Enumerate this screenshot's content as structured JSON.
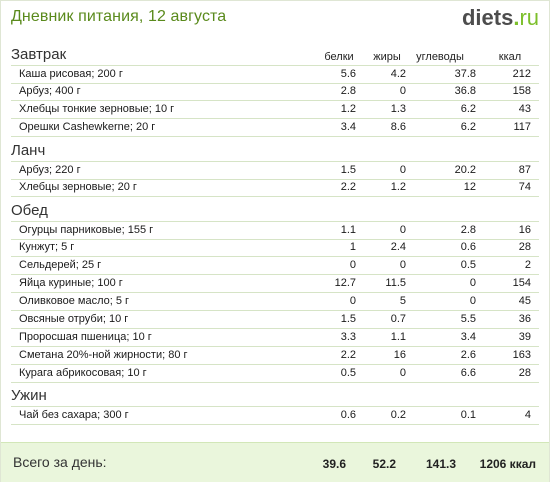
{
  "title": "Дневник питания, 12 августа",
  "logo": {
    "name": "diets",
    "dot": ".",
    "tld": "ru"
  },
  "columns": [
    "белки",
    "жиры",
    "углеводы",
    "ккал"
  ],
  "sections": [
    {
      "title": "Завтрак",
      "items": [
        {
          "name": "Каша рисовая; 200 г",
          "protein": "5.6",
          "fat": "4.2",
          "carbs": "37.8",
          "kcal": "212"
        },
        {
          "name": "Арбуз; 400 г",
          "protein": "2.8",
          "fat": "0",
          "carbs": "36.8",
          "kcal": "158"
        },
        {
          "name": "Хлебцы тонкие зерновые; 10 г",
          "protein": "1.2",
          "fat": "1.3",
          "carbs": "6.2",
          "kcal": "43"
        },
        {
          "name": "Орешки Cashewkerne; 20 г",
          "protein": "3.4",
          "fat": "8.6",
          "carbs": "6.2",
          "kcal": "117"
        }
      ]
    },
    {
      "title": "Ланч",
      "items": [
        {
          "name": "Арбуз; 220 г",
          "protein": "1.5",
          "fat": "0",
          "carbs": "20.2",
          "kcal": "87"
        },
        {
          "name": "Хлебцы зерновые; 20 г",
          "protein": "2.2",
          "fat": "1.2",
          "carbs": "12",
          "kcal": "74"
        }
      ]
    },
    {
      "title": "Обед",
      "items": [
        {
          "name": "Огурцы парниковые; 155 г",
          "protein": "1.1",
          "fat": "0",
          "carbs": "2.8",
          "kcal": "16"
        },
        {
          "name": "Кунжут; 5 г",
          "protein": "1",
          "fat": "2.4",
          "carbs": "0.6",
          "kcal": "28"
        },
        {
          "name": "Сельдерей; 25 г",
          "protein": "0",
          "fat": "0",
          "carbs": "0.5",
          "kcal": "2"
        },
        {
          "name": "Яйца куриные; 100 г",
          "protein": "12.7",
          "fat": "11.5",
          "carbs": "0",
          "kcal": "154"
        },
        {
          "name": "Оливковое масло; 5 г",
          "protein": "0",
          "fat": "5",
          "carbs": "0",
          "kcal": "45"
        },
        {
          "name": "Овсяные отруби; 10 г",
          "protein": "1.5",
          "fat": "0.7",
          "carbs": "5.5",
          "kcal": "36"
        },
        {
          "name": "Проросшая пшеница; 10 г",
          "protein": "3.3",
          "fat": "1.1",
          "carbs": "3.4",
          "kcal": "39"
        },
        {
          "name": "Сметана 20%-ной жирности; 80 г",
          "protein": "2.2",
          "fat": "16",
          "carbs": "2.6",
          "kcal": "163"
        },
        {
          "name": "Курага абрикосовая; 10 г",
          "protein": "0.5",
          "fat": "0",
          "carbs": "6.6",
          "kcal": "28"
        }
      ]
    },
    {
      "title": "Ужин",
      "items": [
        {
          "name": "Чай без сахара; 300 г",
          "protein": "0.6",
          "fat": "0.2",
          "carbs": "0.1",
          "kcal": "4"
        }
      ]
    }
  ],
  "total": {
    "label": "Всего за день:",
    "protein": "39.6",
    "fat": "52.2",
    "carbs": "141.3",
    "kcal": "1206 ккал"
  }
}
